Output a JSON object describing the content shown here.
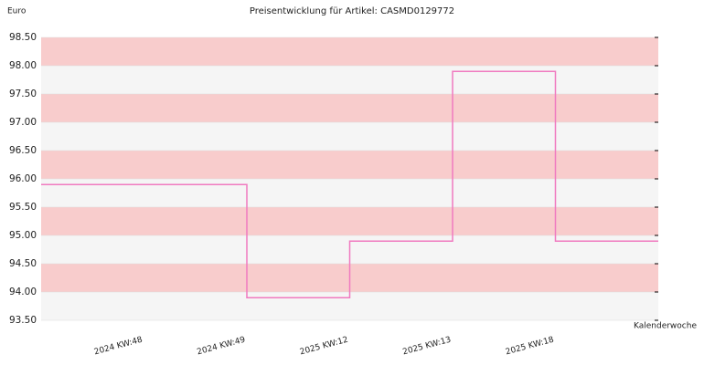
{
  "chart_data": {
    "type": "step",
    "title": "Preisentwicklung für Artikel: CASMD0129772",
    "y_label": "Euro",
    "x_label": "Kalenderwoche",
    "categories": [
      "2024 KW:48",
      "2024 KW:49",
      "2025 KW:12",
      "2025 KW:13",
      "2025 KW:18"
    ],
    "values": [
      95.9,
      93.9,
      94.9,
      97.9,
      94.9
    ],
    "color": "#f07ac0",
    "ylim": [
      93.5,
      98.5
    ],
    "yticks": [
      {
        "value": 93.5,
        "label": "93.50"
      },
      {
        "value": 94,
        "label": "94.00"
      },
      {
        "value": 94.5,
        "label": "94.50"
      },
      {
        "value": 95,
        "label": "95.00"
      },
      {
        "value": 95.5,
        "label": "95.50"
      },
      {
        "value": 96,
        "label": "96.00"
      },
      {
        "value": 96.5,
        "label": "96.50"
      },
      {
        "value": 97,
        "label": "97.00"
      },
      {
        "value": 97.5,
        "label": "97.50"
      },
      {
        "value": 98,
        "label": "98.00"
      },
      {
        "value": 98.5,
        "label": "98.50"
      }
    ],
    "band_colors": [
      "#f5f5f5",
      "#f8cccc"
    ]
  }
}
